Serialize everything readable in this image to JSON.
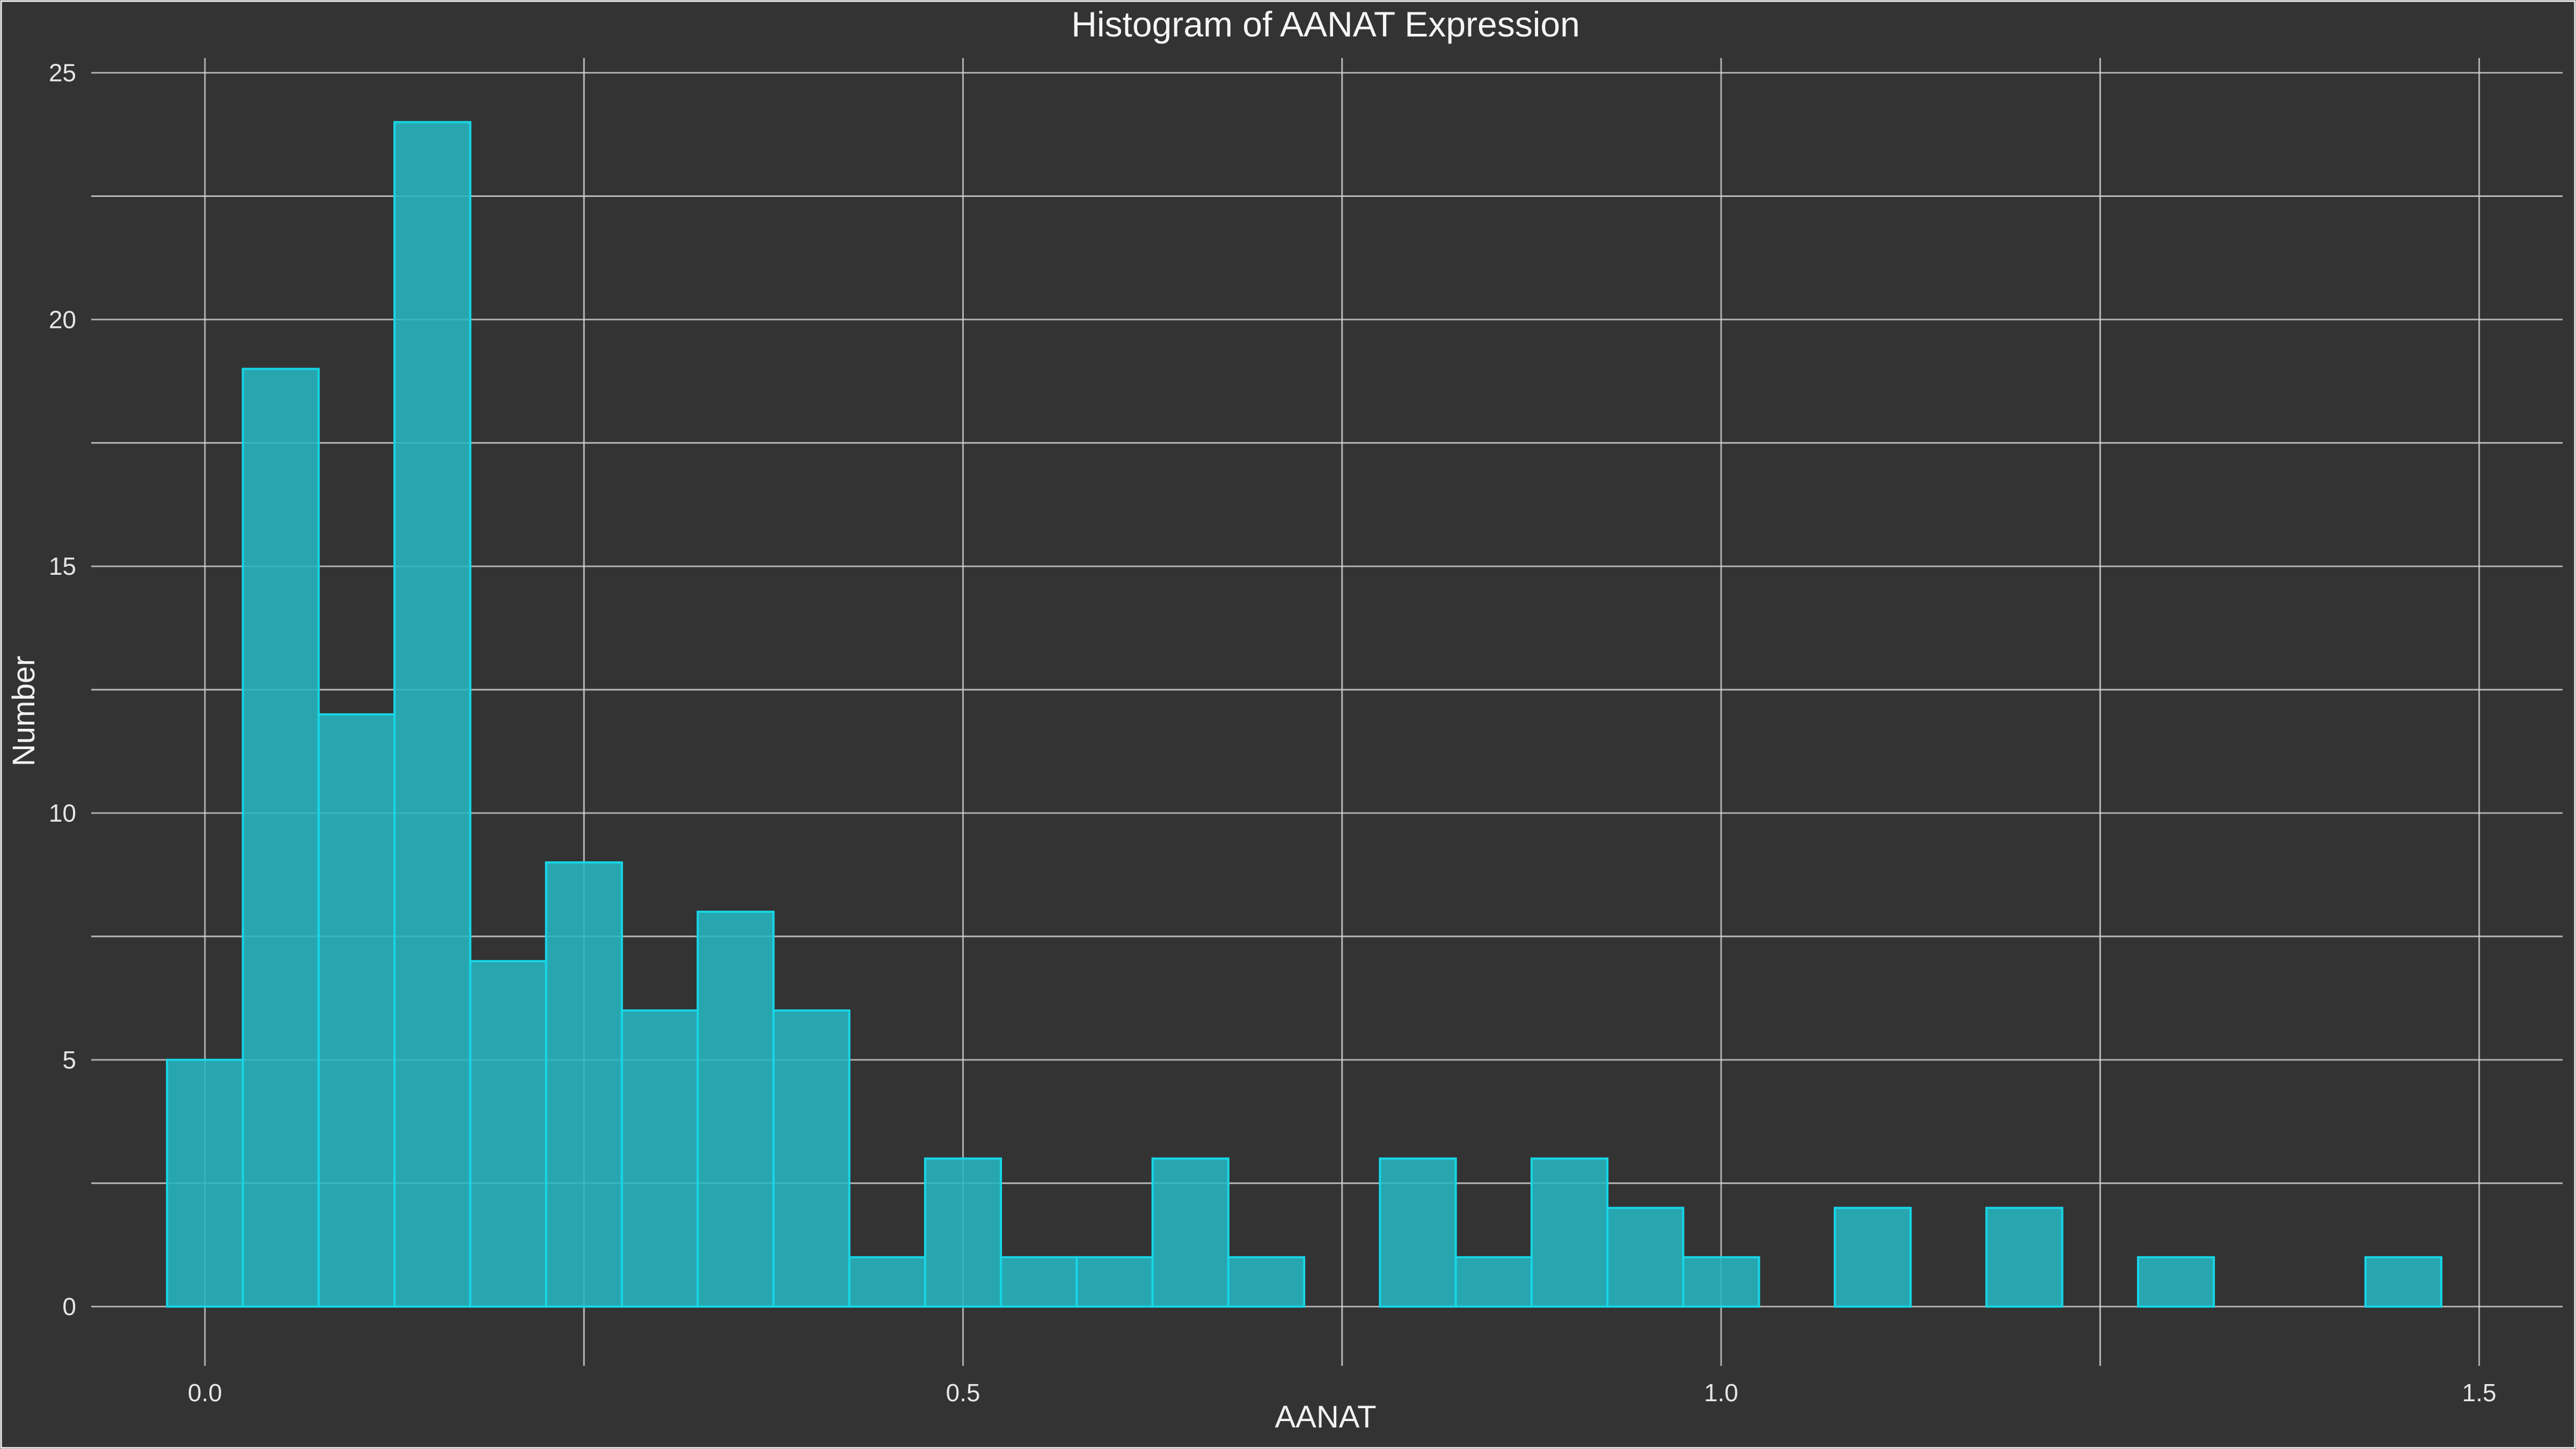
{
  "chart_data": {
    "type": "bar",
    "title": "Histogram of AANAT Expression",
    "xlabel": "AANAT",
    "ylabel": "Number",
    "xlim": [
      -0.075,
      1.555
    ],
    "ylim": [
      -1.2,
      25.3
    ],
    "x_ticks": [
      0.0,
      0.5,
      1.0,
      1.5
    ],
    "x_tick_labels": [
      "0.0",
      "0.5",
      "1.0",
      "1.5"
    ],
    "y_ticks": [
      0,
      5,
      10,
      15,
      20,
      25
    ],
    "y_tick_labels": [
      "0",
      "5",
      "10",
      "15",
      "20",
      "25"
    ],
    "bin_width": 0.05,
    "bins": [
      {
        "x0": -0.025,
        "x1": 0.025,
        "count": 5
      },
      {
        "x0": 0.025,
        "x1": 0.075,
        "count": 19
      },
      {
        "x0": 0.075,
        "x1": 0.125,
        "count": 12
      },
      {
        "x0": 0.125,
        "x1": 0.175,
        "count": 24
      },
      {
        "x0": 0.175,
        "x1": 0.225,
        "count": 7
      },
      {
        "x0": 0.225,
        "x1": 0.275,
        "count": 9
      },
      {
        "x0": 0.275,
        "x1": 0.325,
        "count": 6
      },
      {
        "x0": 0.325,
        "x1": 0.375,
        "count": 8
      },
      {
        "x0": 0.375,
        "x1": 0.425,
        "count": 6
      },
      {
        "x0": 0.425,
        "x1": 0.475,
        "count": 1
      },
      {
        "x0": 0.475,
        "x1": 0.525,
        "count": 3
      },
      {
        "x0": 0.525,
        "x1": 0.575,
        "count": 1
      },
      {
        "x0": 0.575,
        "x1": 0.625,
        "count": 1
      },
      {
        "x0": 0.625,
        "x1": 0.675,
        "count": 3
      },
      {
        "x0": 0.675,
        "x1": 0.725,
        "count": 1
      },
      {
        "x0": 0.725,
        "x1": 0.775,
        "count": 0
      },
      {
        "x0": 0.775,
        "x1": 0.825,
        "count": 3
      },
      {
        "x0": 0.825,
        "x1": 0.875,
        "count": 1
      },
      {
        "x0": 0.875,
        "x1": 0.925,
        "count": 3
      },
      {
        "x0": 0.925,
        "x1": 0.975,
        "count": 2
      },
      {
        "x0": 0.975,
        "x1": 1.025,
        "count": 1
      },
      {
        "x0": 1.025,
        "x1": 1.075,
        "count": 0
      },
      {
        "x0": 1.075,
        "x1": 1.125,
        "count": 2
      },
      {
        "x0": 1.125,
        "x1": 1.175,
        "count": 0
      },
      {
        "x0": 1.175,
        "x1": 1.225,
        "count": 2
      },
      {
        "x0": 1.225,
        "x1": 1.275,
        "count": 0
      },
      {
        "x0": 1.275,
        "x1": 1.325,
        "count": 1
      },
      {
        "x0": 1.325,
        "x1": 1.375,
        "count": 0
      },
      {
        "x0": 1.375,
        "x1": 1.425,
        "count": 0
      },
      {
        "x0": 1.425,
        "x1": 1.475,
        "count": 1
      }
    ],
    "grid": true,
    "legend": "none",
    "colors": {
      "background": "#333333",
      "bar_fill": "#27b6c2",
      "bar_outline": "#16d6e6",
      "grid": "#d8d8d8",
      "text": "#f2f2f2"
    }
  }
}
